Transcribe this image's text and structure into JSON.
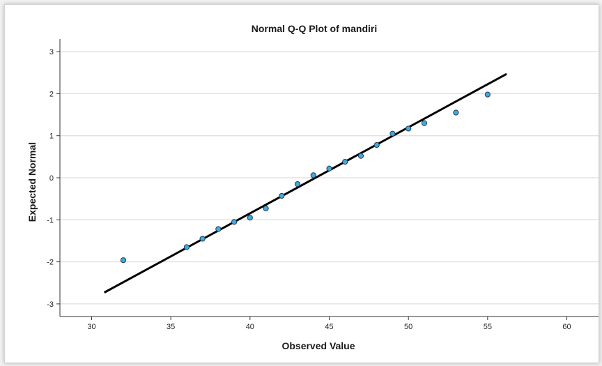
{
  "chart_data": {
    "type": "scatter",
    "title": "Normal Q-Q Plot of mandiri",
    "xlabel": "Observed Value",
    "ylabel": "Expected Normal",
    "xlim": [
      28,
      62
    ],
    "ylim": [
      -3.3,
      3.3
    ],
    "x_ticks": [
      30,
      35,
      40,
      45,
      50,
      55,
      60
    ],
    "y_ticks": [
      -3,
      -2,
      -1,
      0,
      1,
      2,
      3
    ],
    "grid": "horizontal",
    "points": [
      {
        "x": 32,
        "y": -1.96
      },
      {
        "x": 36,
        "y": -1.65
      },
      {
        "x": 37,
        "y": -1.45
      },
      {
        "x": 38,
        "y": -1.22
      },
      {
        "x": 39,
        "y": -1.05
      },
      {
        "x": 40,
        "y": -0.95
      },
      {
        "x": 41,
        "y": -0.73
      },
      {
        "x": 42,
        "y": -0.43
      },
      {
        "x": 43,
        "y": -0.15
      },
      {
        "x": 44,
        "y": 0.06
      },
      {
        "x": 45,
        "y": 0.22
      },
      {
        "x": 46,
        "y": 0.38
      },
      {
        "x": 47,
        "y": 0.52
      },
      {
        "x": 48,
        "y": 0.78
      },
      {
        "x": 49,
        "y": 1.05
      },
      {
        "x": 50,
        "y": 1.17
      },
      {
        "x": 51,
        "y": 1.3
      },
      {
        "x": 53,
        "y": 1.55
      },
      {
        "x": 55,
        "y": 1.98
      }
    ],
    "reference_line": {
      "x": [
        30.8,
        56.2
      ],
      "y": [
        -2.73,
        2.47
      ]
    },
    "colors": {
      "point_fill": "#41a9dc",
      "point_stroke": "#1f3b57",
      "line": "#000000",
      "grid": "#d6d6d6"
    }
  }
}
